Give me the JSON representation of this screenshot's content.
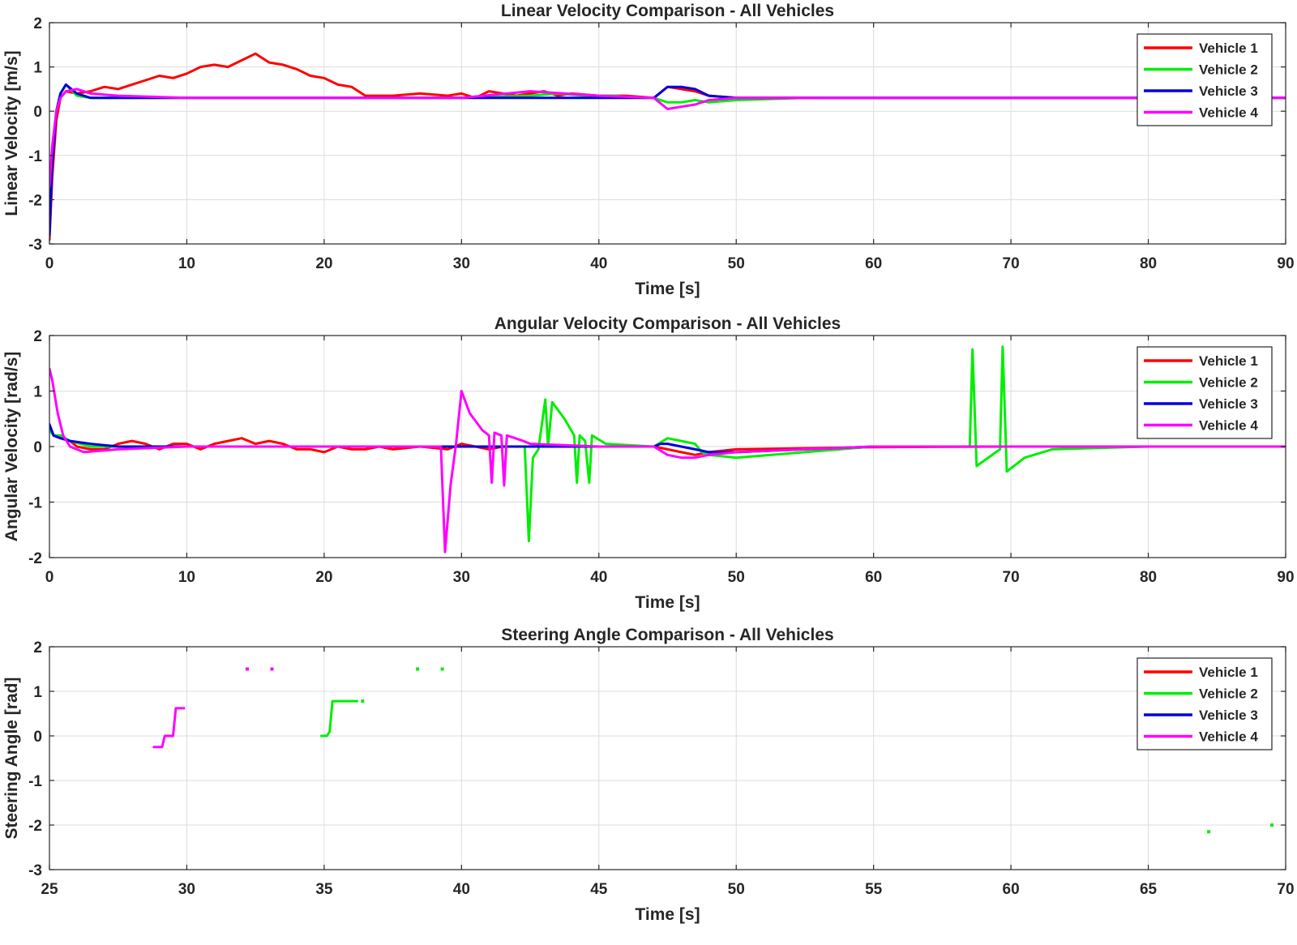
{
  "chart_data": [
    {
      "type": "line",
      "title": "Linear Velocity Comparison - All Vehicles",
      "xlabel": "Time [s]",
      "ylabel": "Linear Velocity [m/s]",
      "xlim": [
        0,
        90
      ],
      "ylim": [
        -3,
        2
      ],
      "xticks": [
        0,
        10,
        20,
        30,
        40,
        50,
        60,
        70,
        80,
        90
      ],
      "yticks": [
        -3,
        -2,
        -1,
        0,
        1,
        2
      ],
      "grid": true,
      "legend": "top-right",
      "series": [
        {
          "name": "Vehicle 1",
          "color": "#ff0000",
          "x": [
            0,
            0.2,
            0.5,
            0.8,
            1.2,
            2,
            3,
            4,
            5,
            6,
            7,
            8,
            9,
            10,
            11,
            12,
            13,
            14,
            15,
            16,
            17,
            18,
            19,
            20,
            21,
            22,
            23,
            25,
            27,
            29,
            30,
            31,
            32,
            33,
            34,
            35,
            36,
            37,
            38,
            40,
            42,
            44,
            45,
            46,
            47,
            48,
            50,
            55,
            60,
            70,
            80,
            90
          ],
          "y": [
            -2.9,
            -1.5,
            -0.2,
            0.3,
            0.45,
            0.4,
            0.45,
            0.55,
            0.5,
            0.6,
            0.7,
            0.8,
            0.75,
            0.85,
            1.0,
            1.05,
            1.0,
            1.15,
            1.3,
            1.1,
            1.05,
            0.95,
            0.8,
            0.75,
            0.6,
            0.55,
            0.35,
            0.35,
            0.4,
            0.35,
            0.4,
            0.3,
            0.45,
            0.4,
            0.35,
            0.4,
            0.45,
            0.35,
            0.4,
            0.35,
            0.35,
            0.3,
            0.55,
            0.5,
            0.45,
            0.35,
            0.3,
            0.3,
            0.3,
            0.3,
            0.3,
            0.3
          ]
        },
        {
          "name": "Vehicle 2",
          "color": "#00ee00",
          "x": [
            0,
            0.2,
            0.5,
            0.8,
            1.2,
            2,
            3,
            5,
            10,
            20,
            30,
            35,
            37,
            39,
            41,
            43,
            44,
            45,
            46,
            47,
            48,
            50,
            55,
            60,
            70,
            80,
            90
          ],
          "y": [
            -2.7,
            -1.0,
            0.0,
            0.4,
            0.6,
            0.35,
            0.3,
            0.3,
            0.3,
            0.3,
            0.3,
            0.35,
            0.4,
            0.35,
            0.35,
            0.3,
            0.3,
            0.2,
            0.2,
            0.25,
            0.2,
            0.25,
            0.3,
            0.3,
            0.3,
            0.3,
            0.3
          ]
        },
        {
          "name": "Vehicle 3",
          "color": "#0000dd",
          "x": [
            0,
            0.2,
            0.5,
            0.8,
            1.2,
            2,
            3,
            5,
            10,
            20,
            30,
            35,
            40,
            44,
            45,
            46,
            47,
            48,
            50,
            55,
            60,
            70,
            80,
            90
          ],
          "y": [
            -2.8,
            -1.2,
            0.0,
            0.4,
            0.6,
            0.4,
            0.3,
            0.3,
            0.3,
            0.3,
            0.3,
            0.3,
            0.3,
            0.3,
            0.55,
            0.55,
            0.5,
            0.35,
            0.3,
            0.3,
            0.3,
            0.3,
            0.3,
            0.3
          ]
        },
        {
          "name": "Vehicle 4",
          "color": "#ff00ff",
          "x": [
            0,
            0.2,
            0.5,
            0.8,
            1.2,
            2,
            3,
            5,
            10,
            20,
            30,
            35,
            40,
            44,
            45,
            46,
            47,
            48,
            50,
            55,
            60,
            70,
            80,
            90
          ],
          "y": [
            -1.7,
            -0.8,
            0.0,
            0.3,
            0.45,
            0.5,
            0.4,
            0.35,
            0.3,
            0.3,
            0.3,
            0.45,
            0.35,
            0.3,
            0.05,
            0.1,
            0.15,
            0.25,
            0.3,
            0.3,
            0.3,
            0.3,
            0.3,
            0.3
          ]
        }
      ]
    },
    {
      "type": "line",
      "title": "Angular Velocity Comparison - All Vehicles",
      "xlabel": "Time [s]",
      "ylabel": "Angular Velocity [rad/s]",
      "xlim": [
        0,
        90
      ],
      "ylim": [
        -2,
        2
      ],
      "xticks": [
        0,
        10,
        20,
        30,
        40,
        50,
        60,
        70,
        80,
        90
      ],
      "yticks": [
        -2,
        -1,
        0,
        1,
        2
      ],
      "grid": true,
      "legend": "top-right",
      "series": [
        {
          "name": "Vehicle 1",
          "color": "#ff0000",
          "x": [
            0,
            0.3,
            0.8,
            1.5,
            2,
            3,
            4,
            5,
            6,
            7,
            8,
            9,
            10,
            11,
            12,
            13,
            14,
            15,
            16,
            17,
            18,
            19,
            20,
            21,
            22,
            23,
            24,
            25,
            27,
            29,
            30,
            31,
            32,
            33,
            35,
            40,
            44,
            45,
            46,
            47,
            48,
            50,
            55,
            60,
            70,
            80,
            90
          ],
          "y": [
            0.4,
            0.2,
            0.15,
            0.1,
            0.0,
            -0.05,
            -0.05,
            0.05,
            0.1,
            0.05,
            -0.05,
            0.05,
            0.05,
            -0.05,
            0.05,
            0.1,
            0.15,
            0.05,
            0.1,
            0.05,
            -0.05,
            -0.05,
            -0.1,
            0.0,
            -0.05,
            -0.05,
            0.0,
            -0.05,
            0.0,
            -0.05,
            0.05,
            0.0,
            -0.05,
            0.0,
            0.0,
            0.0,
            0.0,
            -0.05,
            -0.1,
            -0.15,
            -0.1,
            -0.05,
            -0.03,
            -0.01,
            0.0,
            0.0,
            0.0
          ]
        },
        {
          "name": "Vehicle 2",
          "color": "#00ee00",
          "x": [
            0,
            0.3,
            0.8,
            1.5,
            3,
            5,
            10,
            20,
            30,
            34.6,
            34.9,
            35.2,
            35.6,
            36.1,
            36.3,
            36.6,
            37.5,
            38.2,
            38.4,
            38.6,
            39.0,
            39.3,
            39.5,
            40.5,
            44,
            45,
            46,
            47,
            47.5,
            48,
            50,
            55,
            60,
            67.0,
            67.2,
            67.5,
            69.2,
            69.4,
            69.7,
            71,
            73,
            80,
            90
          ],
          "y": [
            0.3,
            0.2,
            0.2,
            0.1,
            0.0,
            0.0,
            0.0,
            0.0,
            0.0,
            0.0,
            -1.7,
            -0.2,
            -0.05,
            0.85,
            0.0,
            0.8,
            0.5,
            0.2,
            -0.65,
            0.2,
            0.1,
            -0.65,
            0.2,
            0.05,
            0.0,
            0.15,
            0.1,
            0.05,
            -0.1,
            -0.15,
            -0.2,
            -0.1,
            0.0,
            0.0,
            1.75,
            -0.35,
            -0.05,
            1.8,
            -0.45,
            -0.2,
            -0.05,
            0.0,
            0.0
          ]
        },
        {
          "name": "Vehicle 3",
          "color": "#0000dd",
          "x": [
            0,
            0.3,
            0.8,
            1.5,
            3,
            5,
            10,
            20,
            30,
            35,
            40,
            44,
            44.5,
            45,
            46,
            47,
            48,
            50,
            55,
            60,
            70,
            80,
            90
          ],
          "y": [
            0.4,
            0.2,
            0.15,
            0.1,
            0.05,
            0.0,
            0.0,
            0.0,
            0.0,
            0.0,
            0.0,
            0.0,
            0.05,
            0.05,
            0.0,
            -0.05,
            -0.1,
            -0.1,
            -0.05,
            0.0,
            0.0,
            0.0,
            0.0
          ]
        },
        {
          "name": "Vehicle 4",
          "color": "#ff00ff",
          "x": [
            0,
            0.2,
            0.6,
            1.0,
            1.5,
            2.5,
            3.5,
            5,
            10,
            20,
            28.5,
            28.8,
            29.2,
            29.6,
            30.0,
            30.6,
            31.5,
            32.0,
            32.2,
            32.4,
            32.9,
            33.1,
            33.3,
            34.5,
            35,
            40,
            44,
            45,
            46,
            47,
            48,
            50,
            55,
            60,
            70,
            80,
            90
          ],
          "y": [
            1.4,
            1.2,
            0.6,
            0.2,
            0.0,
            -0.1,
            -0.08,
            -0.05,
            0.0,
            0.0,
            0.0,
            -1.9,
            -0.7,
            0.05,
            1.0,
            0.6,
            0.3,
            0.2,
            -0.65,
            0.25,
            0.2,
            -0.7,
            0.2,
            0.1,
            0.05,
            0.0,
            0.0,
            -0.15,
            -0.2,
            -0.2,
            -0.15,
            -0.1,
            -0.05,
            0.0,
            0.0,
            0.0,
            0.0
          ]
        }
      ]
    },
    {
      "type": "line",
      "title": "Steering Angle Comparison - All Vehicles",
      "xlabel": "Time [s]",
      "ylabel": "Steering Angle [rad]",
      "xlim": [
        25,
        70
      ],
      "ylim": [
        -3,
        2
      ],
      "xticks": [
        25,
        30,
        35,
        40,
        45,
        50,
        55,
        60,
        65,
        70
      ],
      "yticks": [
        -3,
        -2,
        -1,
        0,
        1,
        2
      ],
      "grid": true,
      "legend": "top-right",
      "series": [
        {
          "name": "Vehicle 1",
          "color": "#ff0000",
          "segments": []
        },
        {
          "name": "Vehicle 2",
          "color": "#00ee00",
          "segments": [
            {
              "x": [
                34.9,
                35.1,
                35.2,
                35.3,
                36.2
              ],
              "y": [
                0.0,
                0.0,
                0.1,
                0.78,
                0.78
              ]
            },
            {
              "x": [
                36.4
              ],
              "y": [
                0.78
              ]
            },
            {
              "x": [
                38.4
              ],
              "y": [
                1.5
              ]
            },
            {
              "x": [
                39.3
              ],
              "y": [
                1.5
              ]
            },
            {
              "x": [
                67.2
              ],
              "y": [
                -2.15
              ]
            },
            {
              "x": [
                69.5
              ],
              "y": [
                -2.0
              ]
            }
          ]
        },
        {
          "name": "Vehicle 3",
          "color": "#0000dd",
          "segments": []
        },
        {
          "name": "Vehicle 4",
          "color": "#ff00ff",
          "segments": [
            {
              "x": [
                28.8,
                29.1,
                29.2,
                29.5,
                29.6,
                29.9
              ],
              "y": [
                -0.25,
                -0.25,
                0.0,
                0.0,
                0.62,
                0.62
              ]
            },
            {
              "x": [
                32.2
              ],
              "y": [
                1.5
              ]
            },
            {
              "x": [
                33.1
              ],
              "y": [
                1.5
              ]
            }
          ]
        }
      ]
    }
  ]
}
